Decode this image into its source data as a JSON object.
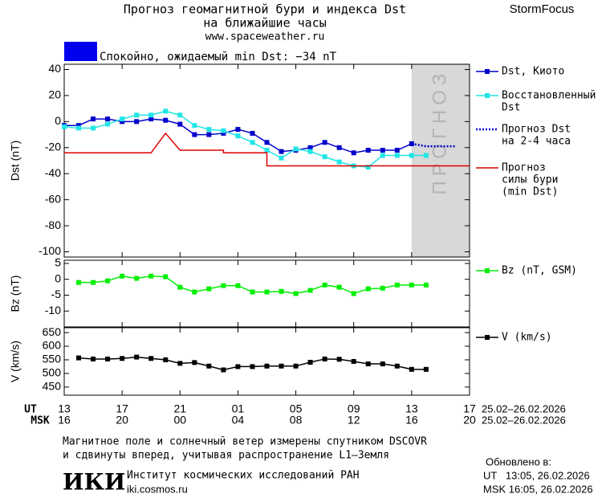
{
  "header": {
    "title": "Прогноз геомагнитной бури и индекса Dst",
    "title2": "на ближайшие часы",
    "url": "www.spaceweather.ru",
    "brand": "StormFocus",
    "status": "Спокойно, ожидаемый min Dst: −34 nT",
    "status_color": "#0000ee"
  },
  "chart_data": [
    {
      "type": "line",
      "y_label": "Dst (nT)",
      "xlim": [
        0,
        28
      ],
      "ylim": [
        -104,
        44
      ],
      "yticks": [
        40,
        20,
        0,
        -20,
        -40,
        -60,
        -80,
        -100
      ],
      "forecast_region": {
        "label": "ПРОГНОЗ",
        "xlim": [
          24,
          28
        ],
        "color": "#d8d8d8"
      },
      "series": [
        {
          "name": [
            "Dst, Киото"
          ],
          "color": "#0000cc",
          "marker": true,
          "dash": false,
          "x": [
            0,
            1,
            2,
            3,
            4,
            5,
            6,
            7,
            8,
            9,
            10,
            11,
            12,
            13,
            14,
            15,
            16,
            17,
            18,
            19,
            20,
            21,
            22,
            23,
            24
          ],
          "values": [
            -3,
            -3,
            2,
            2,
            0,
            0,
            2,
            1,
            -2,
            -10,
            -10,
            -9,
            -6,
            -9,
            -16,
            -23,
            -22,
            -20,
            -16,
            -20,
            -24,
            -22,
            -22,
            -22,
            -17
          ]
        },
        {
          "name": [
            "Восстановленный",
            "Dst"
          ],
          "color": "#22e6e6",
          "marker": true,
          "dash": false,
          "x": [
            0,
            1,
            2,
            3,
            4,
            5,
            6,
            7,
            8,
            9,
            10,
            11,
            12,
            13,
            14,
            15,
            16,
            17,
            18,
            19,
            20,
            21,
            22,
            23,
            24,
            25
          ],
          "values": [
            -4,
            -5,
            -5,
            -2,
            2,
            5,
            5,
            8,
            5,
            -3,
            -6,
            -7,
            -11,
            -16,
            -22,
            -28,
            -21,
            -23,
            -27,
            -31,
            -34,
            -35,
            -26,
            -26,
            -26,
            -26
          ]
        },
        {
          "name": [
            "Прогноз Dst",
            "на 2-4 часа"
          ],
          "color": "#0000cc",
          "marker": false,
          "dash": true,
          "x": [
            24,
            25,
            26,
            27
          ],
          "values": [
            -17,
            -19,
            -19,
            -19
          ]
        },
        {
          "name": [
            "Прогноз",
            "силы бури",
            "(min Dst)"
          ],
          "color": "#dd0000",
          "marker": false,
          "dash": false,
          "x": [
            0,
            6,
            7,
            8,
            11,
            11,
            14,
            14,
            28
          ],
          "values": [
            -24,
            -24,
            -9,
            -22,
            -22,
            -24,
            -24,
            -34,
            -34
          ]
        }
      ]
    },
    {
      "type": "line",
      "y_label": "Bz (nT)",
      "xlim": [
        0,
        28
      ],
      "ylim": [
        -15,
        6
      ],
      "yticks": [
        5,
        0,
        -5,
        -10
      ],
      "series": [
        {
          "name": [
            "Bz (nT, GSM)"
          ],
          "color": "#00ee00",
          "marker": true,
          "dash": false,
          "x": [
            1,
            2,
            3,
            4,
            5,
            6,
            7,
            8,
            9,
            10,
            11,
            12,
            13,
            14,
            15,
            16,
            17,
            18,
            19,
            20,
            21,
            22,
            23,
            24,
            25
          ],
          "values": [
            -1,
            -1,
            -0.5,
            1,
            0.3,
            1,
            0.8,
            -2.5,
            -4,
            -3,
            -2,
            -2,
            -4,
            -4,
            -3.8,
            -4.5,
            -3.5,
            -1.8,
            -2.5,
            -4.5,
            -3,
            -2.8,
            -1.8,
            -1.8,
            -1.8
          ]
        }
      ]
    },
    {
      "type": "line",
      "y_label": "V (km/s)",
      "xlim": [
        0,
        28
      ],
      "ylim": [
        420,
        668
      ],
      "yticks": [
        650,
        600,
        550,
        500,
        450
      ],
      "series": [
        {
          "name": [
            "V (km/s)"
          ],
          "color": "#000000",
          "marker": true,
          "dash": false,
          "x": [
            1,
            2,
            3,
            4,
            5,
            6,
            7,
            8,
            9,
            10,
            11,
            12,
            13,
            14,
            15,
            16,
            17,
            18,
            19,
            20,
            21,
            22,
            23,
            24,
            25
          ],
          "values": [
            557,
            553,
            553,
            555,
            560,
            555,
            550,
            537,
            540,
            527,
            513,
            525,
            525,
            527,
            527,
            527,
            541,
            553,
            552,
            544,
            535,
            535,
            527,
            515,
            515
          ]
        }
      ]
    }
  ],
  "x_axis": {
    "ut_label": "UT",
    "msk_label": "MSK",
    "xticks": [
      {
        "value": 0,
        "label": "13"
      },
      {
        "value": 4,
        "label": "17"
      },
      {
        "value": 8,
        "label": "21"
      },
      {
        "value": 12,
        "label": "01"
      },
      {
        "value": 16,
        "label": "05"
      },
      {
        "value": 20,
        "label": "09"
      },
      {
        "value": 24,
        "label": "13"
      },
      {
        "value": 28,
        "label": "17"
      }
    ],
    "msk_labels": [
      "16",
      "20",
      "00",
      "04",
      "08",
      "12",
      "16",
      "20"
    ],
    "ut_dates": "25.02–26.02.2026",
    "msk_dates": "25.02–26.02.2026"
  },
  "footer": {
    "note1": "Магнитное поле и солнечный ветер измерены спутником DSCOVR",
    "note2": "и сдвинуты вперед, учитывая распространение L1–Земля",
    "logo": "ИКИ",
    "institute": "Институт космических исследований РАН",
    "site": "iki.cosmos.ru",
    "updated": "Обновлено в:",
    "updated_ut": "UT   13:05, 26.02.2026",
    "updated_msk": "MSK 16:05, 26.02.2026"
  }
}
